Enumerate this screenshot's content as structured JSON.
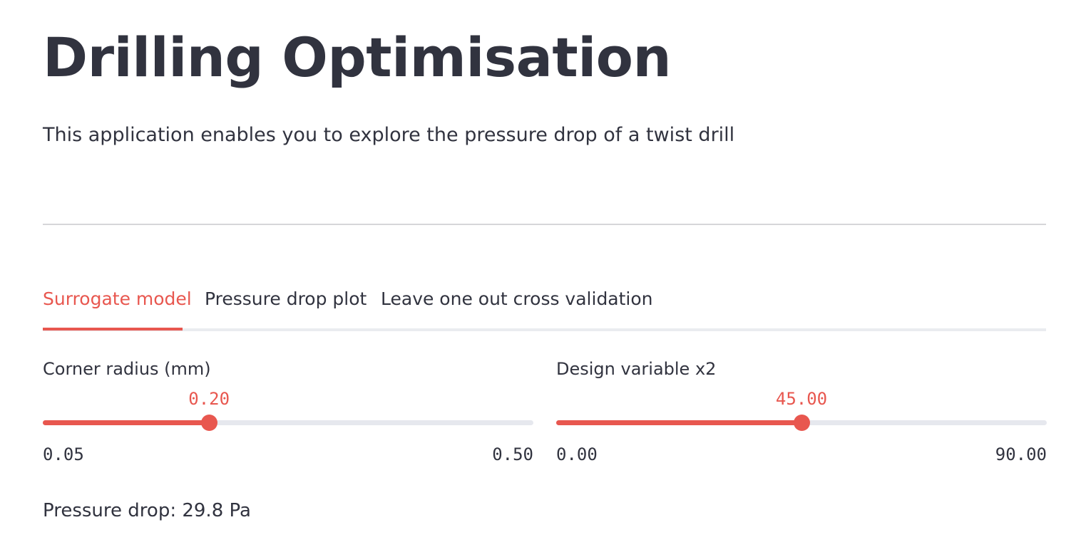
{
  "page": {
    "title": "Drilling Optimisation",
    "subtitle": "This application enables you to explore the pressure drop of a twist drill"
  },
  "tabs": [
    {
      "label": "Surrogate model",
      "active": true
    },
    {
      "label": "Pressure drop plot",
      "active": false
    },
    {
      "label": "Leave one out cross validation",
      "active": false
    }
  ],
  "sliders": [
    {
      "label": "Corner radius (mm)",
      "value_text": "0.20",
      "min_text": "0.05",
      "max_text": "0.50",
      "value": 0.2,
      "min": 0.05,
      "max": 0.5
    },
    {
      "label": "Design variable x2",
      "value_text": "45.00",
      "min_text": "0.00",
      "max_text": "90.00",
      "value": 45.0,
      "min": 0.0,
      "max": 90.0
    }
  ],
  "result": {
    "text": "Pressure drop: 29.8 Pa"
  },
  "colors": {
    "accent": "#e8574f",
    "text": "#31333f",
    "track": "#e6e8ee",
    "divider": "#d6d6d9"
  }
}
